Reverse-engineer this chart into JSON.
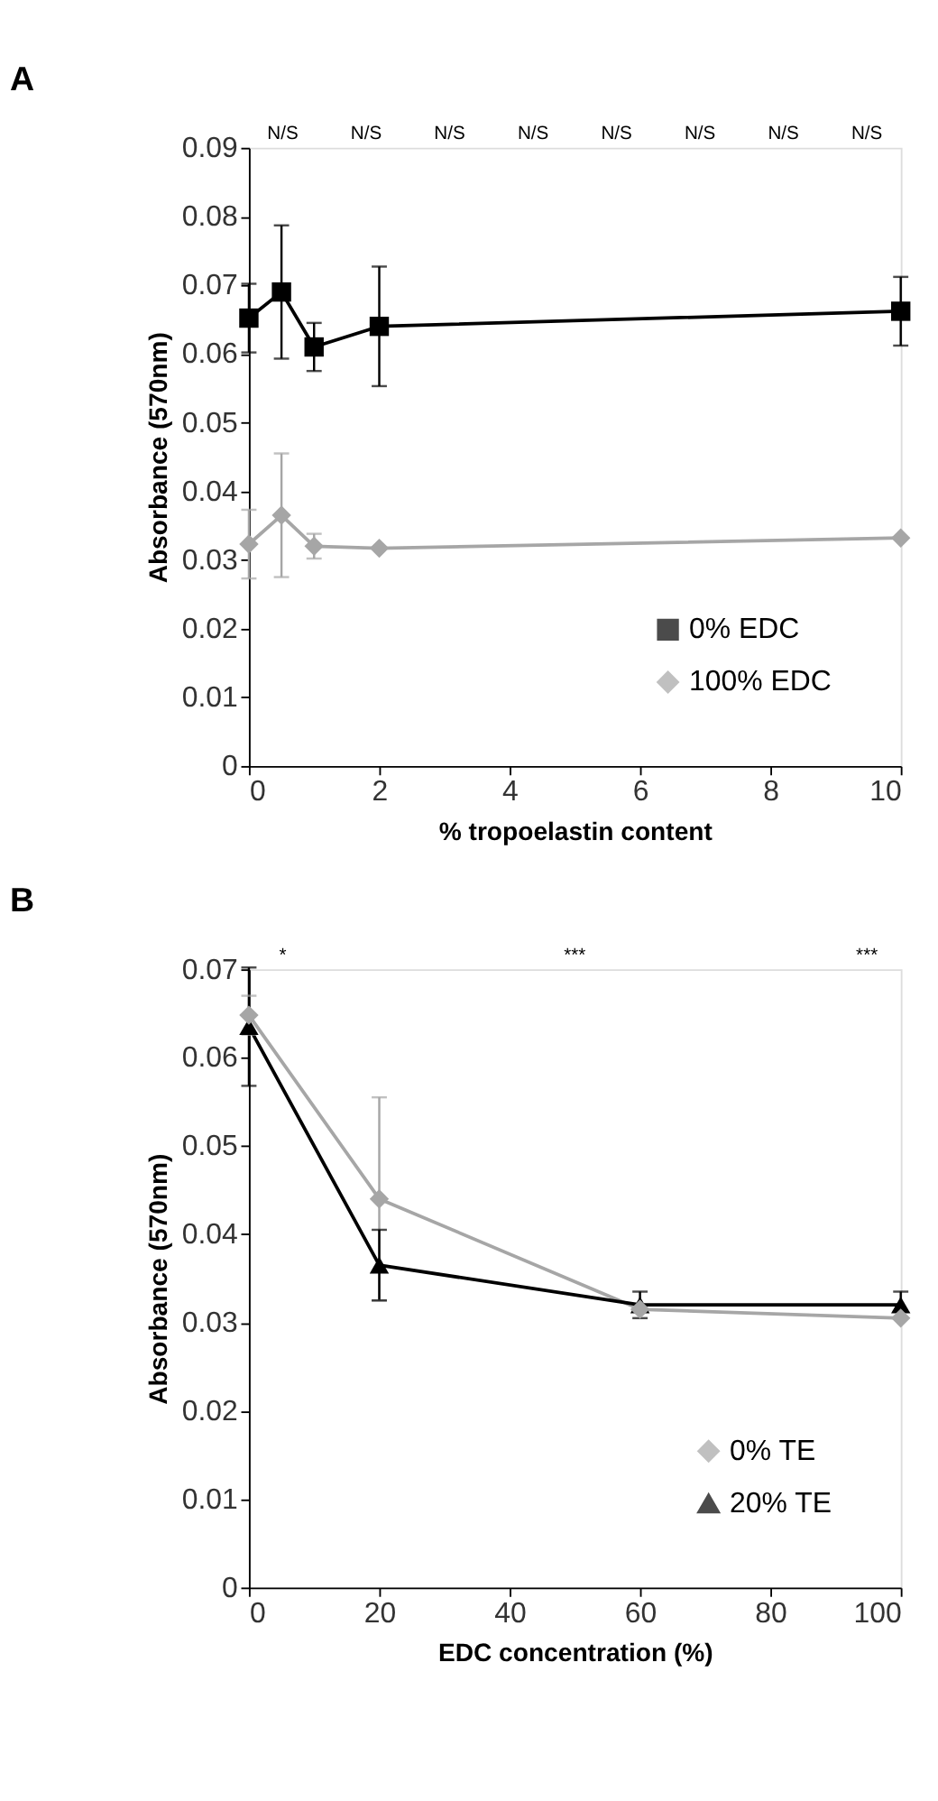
{
  "chart_data": [
    {
      "type": "line",
      "title": "A",
      "xlabel": "% tropoelastin content",
      "ylabel": "Absorbance (570nm)",
      "x": [
        0,
        0.5,
        1,
        2,
        10
      ],
      "series": [
        {
          "name": "0% EDC",
          "color": "#000000",
          "marker": "square",
          "values": [
            0.0652,
            0.069,
            0.061,
            0.064,
            0.0662
          ],
          "errors": [
            0.005,
            0.0097,
            0.0035,
            0.0087,
            0.005
          ]
        },
        {
          "name": "100% EDC",
          "color": "#a6a6a6",
          "marker": "diamond",
          "values": [
            0.0323,
            0.0365,
            0.032,
            0.0317,
            0.0332
          ],
          "errors": [
            0.005,
            0.009,
            0.0018,
            null,
            null
          ]
        }
      ],
      "xlim": [
        0,
        10
      ],
      "xticks": [
        0,
        2,
        4,
        6,
        8,
        10
      ],
      "ylim": [
        0,
        0.09
      ],
      "yticks": [
        0,
        0.01,
        0.02,
        0.03,
        0.04,
        0.05,
        0.06,
        0.07,
        0.08,
        0.09
      ],
      "grid": false,
      "legend": "bottom right",
      "annotations": [
        "N/S",
        "N/S",
        "N/S",
        "N/S",
        "N/S",
        "N/S",
        "N/S",
        "N/S"
      ]
    },
    {
      "type": "line",
      "title": "B",
      "xlabel": "EDC concentration (%)",
      "ylabel": "Absorbance (570nm)",
      "x": [
        0,
        20,
        60,
        100
      ],
      "series": [
        {
          "name": "0% TE",
          "color": "#a6a6a6",
          "marker": "diamond",
          "values": [
            0.0648,
            0.044,
            0.0315,
            0.0305
          ],
          "errors": [
            0.0022,
            0.0115,
            null,
            null
          ]
        },
        {
          "name": "20% TE",
          "color": "#000000",
          "marker": "triangle",
          "values": [
            0.0635,
            0.0365,
            0.032,
            0.032
          ],
          "errors": [
            0.0067,
            0.004,
            0.0015,
            0.0015
          ]
        }
      ],
      "xlim": [
        0,
        100
      ],
      "xticks": [
        0,
        20,
        40,
        60,
        80,
        100
      ],
      "ylim": [
        0,
        0.07
      ],
      "yticks": [
        0,
        0.01,
        0.02,
        0.03,
        0.04,
        0.05,
        0.06,
        0.07
      ],
      "grid": false,
      "legend": "bottom right",
      "annotations": [
        "*",
        "***",
        "***"
      ]
    }
  ]
}
